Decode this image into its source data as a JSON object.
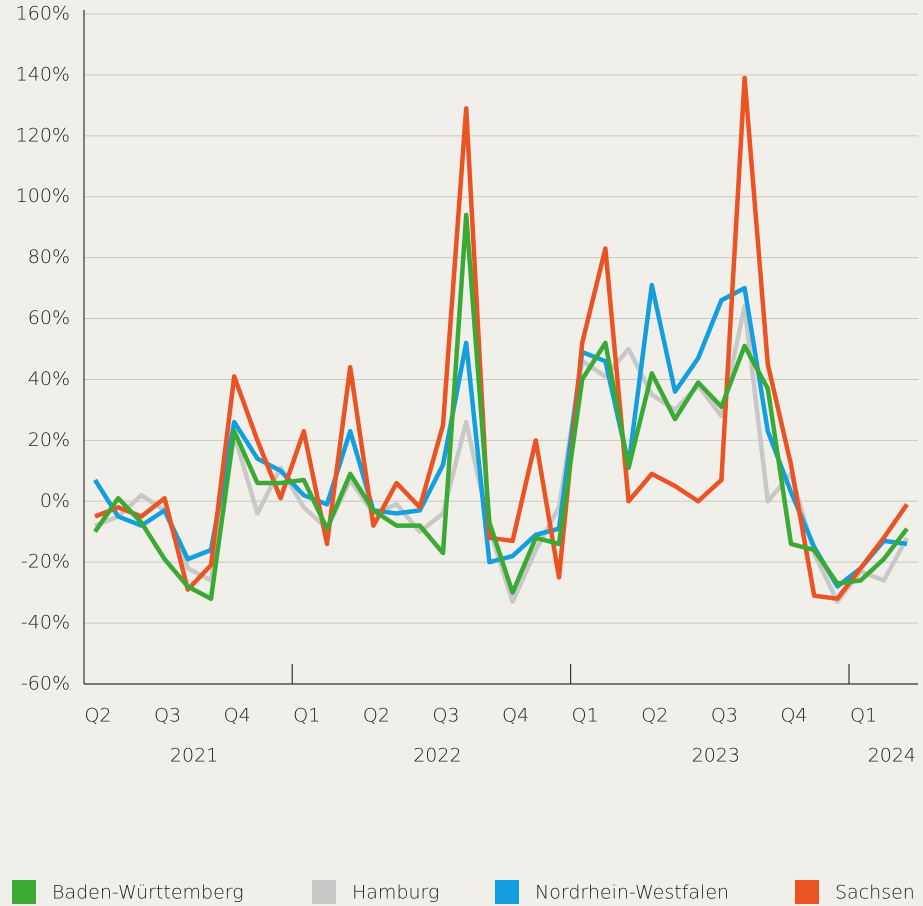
{
  "chart_data": {
    "type": "line",
    "categories": [
      "Q2",
      null,
      null,
      "Q3",
      null,
      null,
      "Q4",
      null,
      null,
      "Q1",
      null,
      null,
      "Q2",
      null,
      null,
      "Q3",
      null,
      null,
      "Q4",
      null,
      null,
      "Q1",
      null,
      null,
      "Q2",
      null,
      null,
      "Q3",
      null,
      null,
      "Q4",
      null,
      null,
      "Q1",
      null,
      null
    ],
    "year_labels": [
      "2021",
      "2022",
      "2023",
      "2024"
    ],
    "ylim": [
      -60,
      160
    ],
    "yticks": [
      {
        "value": -60,
        "label": "-60%"
      },
      {
        "value": -40,
        "label": "-40%"
      },
      {
        "value": -20,
        "label": "-20%"
      },
      {
        "value": 0,
        "label": "0%"
      },
      {
        "value": 20,
        "label": "20%"
      },
      {
        "value": 40,
        "label": "40%"
      },
      {
        "value": 60,
        "label": "60%"
      },
      {
        "value": 80,
        "label": "80%"
      },
      {
        "value": 100,
        "label": "100%"
      },
      {
        "value": 120,
        "label": "120%"
      },
      {
        "value": 140,
        "label": "140%"
      },
      {
        "value": 160,
        "label": "160%"
      }
    ],
    "grid": true,
    "legend": "bottom",
    "series": [
      {
        "name": "Hamburg",
        "color": "#c8c8c6",
        "values": [
          -8,
          -5,
          2,
          -3,
          -22,
          -26,
          22,
          -4,
          11,
          -2,
          -9,
          7,
          -4,
          -1,
          -10,
          -4,
          26,
          -9,
          -33,
          -16,
          -2,
          46,
          41,
          50,
          35,
          30,
          38,
          28,
          64,
          0,
          9,
          -17,
          -33,
          -23,
          -26,
          -12
        ]
      },
      {
        "name": "Nordrhein-Westfalen",
        "color": "#139ee0",
        "values": [
          7,
          -5,
          -8,
          -3,
          -19,
          -16,
          26,
          14,
          10,
          2,
          -1,
          23,
          -3,
          -4,
          -3,
          12,
          52,
          -20,
          -18,
          -11,
          -9,
          49,
          46,
          12,
          71,
          36,
          47,
          66,
          70,
          23,
          3,
          -15,
          -28,
          -22,
          -13,
          -14
        ]
      },
      {
        "name": "Sachsen",
        "color": "#ea5323",
        "values": [
          -5,
          -2,
          -5,
          1,
          -29,
          -21,
          41,
          20,
          1,
          23,
          -14,
          44,
          -8,
          6,
          -2,
          25,
          129,
          -12,
          -13,
          20,
          -25,
          52,
          83,
          0,
          9,
          5,
          0,
          7,
          139,
          45,
          12,
          -31,
          -32,
          -22,
          -12,
          -1
        ]
      },
      {
        "name": "Baden-Württemberg",
        "color": "#3aaa35",
        "values": [
          -10,
          1,
          -7,
          -19,
          -28,
          -32,
          23,
          6,
          6,
          7,
          -9,
          9,
          -3,
          -8,
          -8,
          -17,
          94,
          -7,
          -30,
          -12,
          -14,
          40,
          52,
          11,
          42,
          27,
          39,
          31,
          51,
          37,
          -14,
          -16,
          -27,
          -26,
          -19,
          -9
        ]
      }
    ],
    "legend_order": [
      3,
      0,
      1,
      2
    ]
  }
}
